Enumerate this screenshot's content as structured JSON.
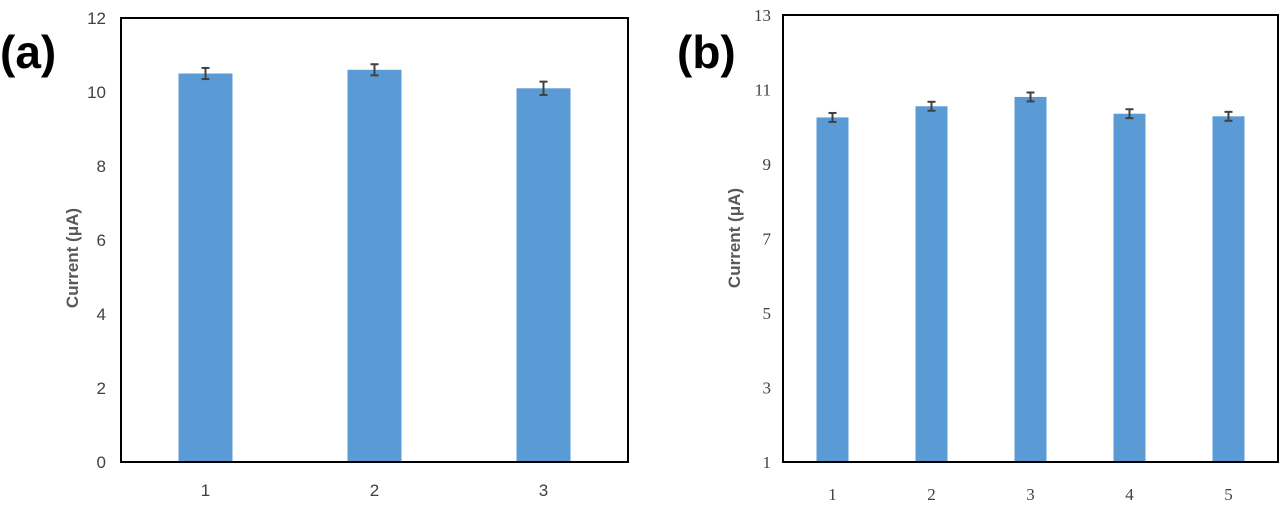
{
  "colors": {
    "bar": "#5b9bd5",
    "error_bar": "#404040",
    "axis": "#000000"
  },
  "chart_data": [
    {
      "panel": "(a)",
      "type": "bar",
      "ylabel": "Current (μA)",
      "xlabel": "",
      "ylim": [
        0,
        12
      ],
      "yticks": [
        "0",
        "2",
        "4",
        "6",
        "8",
        "10",
        "12"
      ],
      "categories": [
        "1",
        "2",
        "3"
      ],
      "values": [
        10.5,
        10.6,
        10.1
      ],
      "errors": [
        0.15,
        0.15,
        0.18
      ],
      "grid": false
    },
    {
      "panel": "(b)",
      "type": "bar",
      "ylabel": "Current (μA)",
      "xlabel": "",
      "ylim": [
        1,
        13
      ],
      "yticks": [
        "1",
        "3",
        "5",
        "7",
        "9",
        "11",
        "13"
      ],
      "categories": [
        "1",
        "2",
        "3",
        "4",
        "5"
      ],
      "values": [
        10.25,
        10.55,
        10.8,
        10.35,
        10.28
      ],
      "errors": [
        0.12,
        0.12,
        0.12,
        0.12,
        0.12
      ],
      "grid": false
    }
  ]
}
